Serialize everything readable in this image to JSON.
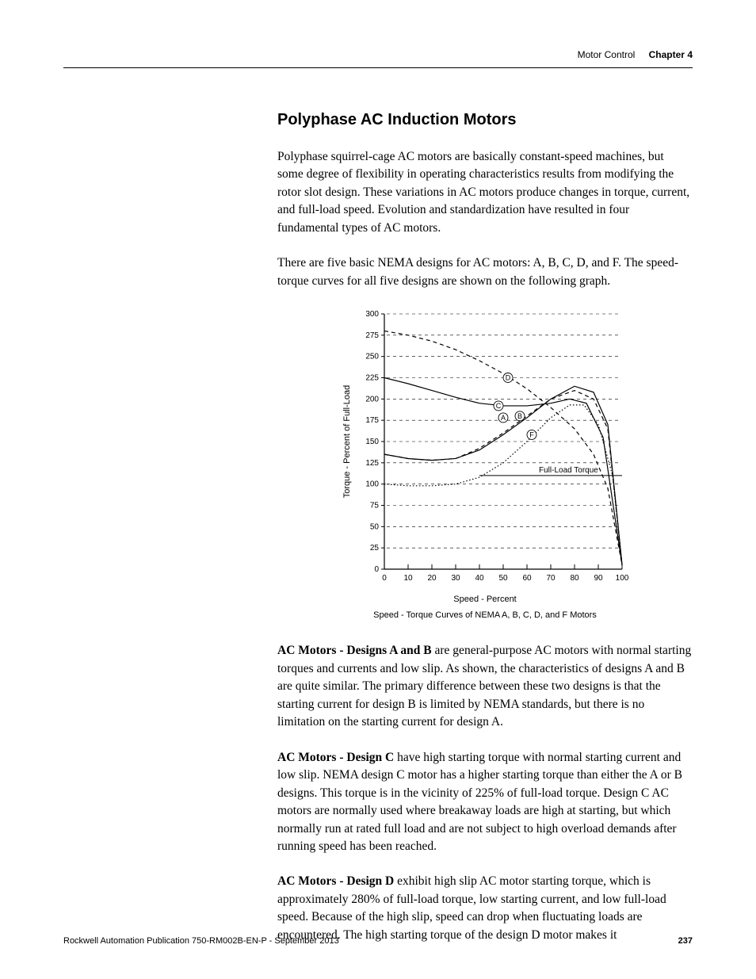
{
  "header": {
    "section": "Motor Control",
    "chapter": "Chapter 4"
  },
  "section_title": "Polyphase AC Induction Motors",
  "paragraphs": {
    "p1": "Polyphase squirrel-cage AC motors are basically constant-speed machines, but some degree of flexibility in operating characteristics results from modifying the rotor slot design. These variations in AC motors produce changes in torque, current, and full-load speed. Evolution and standardization have resulted in four fundamental types of AC motors.",
    "p2": "There are five basic NEMA designs for AC motors: A, B, C, D, and F. The speed-torque curves for all five designs are shown on the following graph.",
    "p3_lead": "AC Motors - Designs A and B",
    "p3": " are general-purpose AC motors with normal starting torques and currents and low slip. As shown, the characteristics of designs A and B are quite similar. The primary difference between these two designs is that the starting current for design B is limited by NEMA standards, but there is no limitation on the starting current for design A.",
    "p4_lead": "AC Motors - Design C",
    "p4": " have high starting torque with normal starting current and low slip. NEMA design C motor has a higher starting torque than either the A or B designs. This torque is in the vicinity of 225% of full-load torque. Design C AC motors are normally used where breakaway loads are high at starting, but which normally run at rated full load and are not subject to high overload demands after running speed has been reached.",
    "p5_lead": "AC Motors - Design D",
    "p5": " exhibit high slip AC motor starting torque, which is approximately 280% of full-load torque, low starting current, and low full-load speed. Because of the high slip, speed can drop when fluctuating loads are encountered. The high starting torque of the design D motor makes it"
  },
  "chart": {
    "type": "line",
    "caption": "Speed - Torque Curves of NEMA A, B, C, D, and F Motors",
    "x_label": "Speed - Percent",
    "y_label": "Torque - Percent of Full-Load",
    "full_load_label": "Full-Load Torque",
    "xlim": [
      0,
      100
    ],
    "ylim": [
      0,
      300
    ],
    "x_ticks": [
      0,
      10,
      20,
      30,
      40,
      50,
      60,
      70,
      80,
      90,
      100
    ],
    "y_ticks": [
      0,
      25,
      50,
      75,
      100,
      125,
      150,
      175,
      200,
      225,
      250,
      275,
      300
    ],
    "full_load_y": 110,
    "background_color": "#ffffff",
    "axis_color": "#000000",
    "tick_font_size": 10,
    "label_font_size": 11,
    "marker_font_size": 9,
    "styles": {
      "solid": {
        "dash": "",
        "width": 1.2
      },
      "dashed": {
        "dash": "5 4",
        "width": 1.2
      },
      "dotted": {
        "dash": "1.5 2.5",
        "width": 1.2
      }
    },
    "series": {
      "A": {
        "label": "A",
        "style": "solid",
        "points": [
          [
            0,
            135
          ],
          [
            10,
            130
          ],
          [
            20,
            128
          ],
          [
            30,
            130
          ],
          [
            40,
            140
          ],
          [
            50,
            158
          ],
          [
            60,
            178
          ],
          [
            70,
            200
          ],
          [
            80,
            215
          ],
          [
            88,
            208
          ],
          [
            94,
            170
          ],
          [
            100,
            5
          ]
        ],
        "marker_at": [
          50,
          178
        ]
      },
      "B": {
        "label": "B",
        "style": "dashed",
        "points": [
          [
            0,
            135
          ],
          [
            10,
            130
          ],
          [
            20,
            128
          ],
          [
            30,
            130
          ],
          [
            40,
            142
          ],
          [
            50,
            160
          ],
          [
            60,
            180
          ],
          [
            70,
            200
          ],
          [
            80,
            210
          ],
          [
            88,
            200
          ],
          [
            94,
            165
          ],
          [
            100,
            5
          ]
        ],
        "marker_at": [
          57,
          180
        ]
      },
      "C": {
        "label": "C",
        "style": "solid",
        "points": [
          [
            0,
            225
          ],
          [
            10,
            218
          ],
          [
            20,
            210
          ],
          [
            30,
            202
          ],
          [
            40,
            195
          ],
          [
            50,
            192
          ],
          [
            60,
            192
          ],
          [
            70,
            195
          ],
          [
            78,
            200
          ],
          [
            85,
            195
          ],
          [
            92,
            155
          ],
          [
            100,
            5
          ]
        ],
        "marker_at": [
          48,
          192
        ]
      },
      "D": {
        "label": "D",
        "style": "dashed",
        "points": [
          [
            0,
            280
          ],
          [
            10,
            275
          ],
          [
            20,
            268
          ],
          [
            30,
            258
          ],
          [
            40,
            245
          ],
          [
            50,
            230
          ],
          [
            60,
            212
          ],
          [
            70,
            190
          ],
          [
            80,
            165
          ],
          [
            88,
            135
          ],
          [
            94,
            95
          ],
          [
            100,
            5
          ]
        ],
        "marker_at": [
          52,
          225
        ]
      },
      "F": {
        "label": "F",
        "style": "dotted",
        "points": [
          [
            0,
            100
          ],
          [
            10,
            98
          ],
          [
            20,
            98
          ],
          [
            30,
            100
          ],
          [
            40,
            108
          ],
          [
            50,
            125
          ],
          [
            60,
            150
          ],
          [
            70,
            178
          ],
          [
            78,
            193
          ],
          [
            84,
            193
          ],
          [
            90,
            170
          ],
          [
            96,
            110
          ],
          [
            100,
            5
          ]
        ],
        "marker_at": [
          62,
          158
        ]
      }
    }
  },
  "footer": {
    "pubinfo": "Rockwell Automation Publication 750-RM002B-EN-P - September 2013",
    "page_number": "237"
  }
}
